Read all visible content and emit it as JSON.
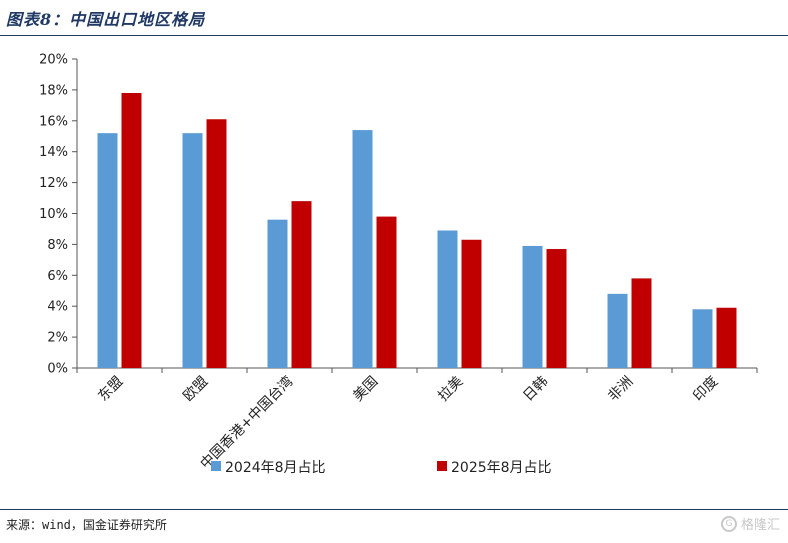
{
  "header": {
    "title": "图表8：中国出口地区格局"
  },
  "footer": {
    "source": "来源：wind，国金证券研究所",
    "watermark": "格隆汇"
  },
  "chart_data": {
    "type": "bar",
    "categories": [
      "东盟",
      "欧盟",
      "中国香港+中国台湾",
      "美国",
      "拉美",
      "日韩",
      "非洲",
      "印度"
    ],
    "series": [
      {
        "name": "2024年8月占比",
        "values": [
          15.2,
          15.2,
          9.6,
          15.4,
          8.9,
          7.9,
          4.8,
          3.8
        ],
        "color": "#5b9bd5"
      },
      {
        "name": "2025年8月占比",
        "values": [
          17.8,
          16.1,
          10.8,
          9.8,
          8.3,
          7.7,
          5.8,
          3.9
        ],
        "color": "#c00000"
      }
    ],
    "yticks": [
      "0%",
      "2%",
      "4%",
      "6%",
      "8%",
      "10%",
      "12%",
      "14%",
      "16%",
      "18%",
      "20%"
    ],
    "ylim": [
      0,
      20
    ],
    "y_unit": "%",
    "grid": false,
    "legend_position": "bottom"
  }
}
